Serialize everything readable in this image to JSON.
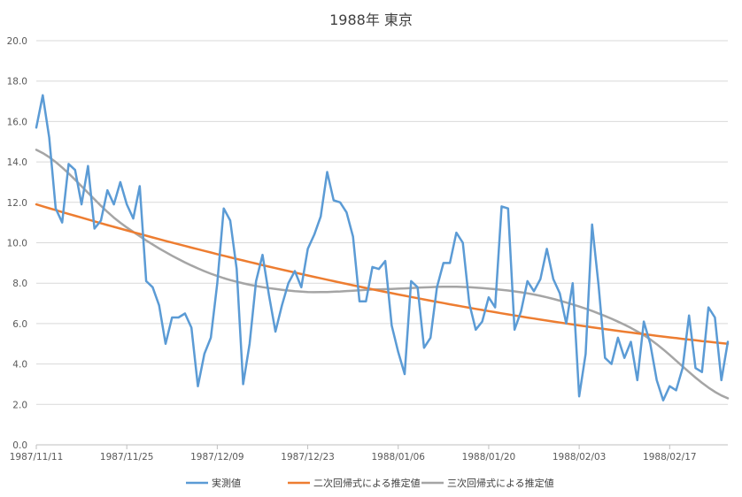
{
  "chart_data": {
    "type": "line",
    "title": "1988年 東京",
    "xlabel": "",
    "ylabel": "",
    "ylim": [
      0,
      20
    ],
    "y_ticks": [
      "0.0",
      "2.0",
      "4.0",
      "6.0",
      "8.0",
      "10.0",
      "12.0",
      "14.0",
      "16.0",
      "18.0",
      "20.0"
    ],
    "x_tick_labels": [
      "1987/11/11",
      "1987/11/25",
      "1987/12/09",
      "1987/12/23",
      "1988/01/06",
      "1988/01/20",
      "1988/02/03",
      "1988/02/17"
    ],
    "x_start": "1987/11/11",
    "x_end": "1988/02/29",
    "grid": true,
    "legend_position": "bottom",
    "series": [
      {
        "name": "実測値",
        "color": "#5B9BD5",
        "values": [
          15.7,
          17.3,
          15.2,
          11.7,
          11.0,
          13.9,
          13.6,
          11.9,
          13.8,
          10.7,
          11.1,
          12.6,
          11.9,
          13.0,
          11.9,
          11.2,
          12.8,
          8.1,
          7.8,
          6.9,
          5.0,
          6.3,
          6.3,
          6.5,
          5.8,
          2.9,
          4.5,
          5.3,
          8.0,
          11.7,
          11.1,
          8.7,
          3.0,
          5.0,
          8.1,
          9.4,
          7.4,
          5.6,
          6.9,
          8.0,
          8.6,
          7.8,
          9.7,
          10.4,
          11.3,
          13.5,
          12.1,
          12.0,
          11.5,
          10.3,
          7.1,
          7.1,
          8.8,
          8.7,
          9.1,
          5.9,
          4.6,
          3.5,
          8.1,
          7.8,
          4.8,
          5.3,
          7.8,
          9.0,
          9.0,
          10.5,
          10.0,
          7.0,
          5.7,
          6.1,
          7.3,
          6.8,
          11.8,
          11.7,
          5.7,
          6.6,
          8.1,
          7.6,
          8.2,
          9.7,
          8.2,
          7.5,
          6.0,
          8.0,
          2.4,
          4.5,
          10.9,
          7.9,
          4.3,
          4.0,
          5.3,
          4.3,
          5.1,
          3.2,
          6.1,
          5.0,
          3.2,
          2.2,
          2.9,
          2.7,
          3.8,
          6.4,
          3.8,
          3.6,
          6.8,
          6.3,
          3.2,
          5.1
        ]
      },
      {
        "name": "二次回帰式による推定値",
        "color": "#ED7D31",
        "formula": "quadratic",
        "start": 11.9,
        "mid": 7.6,
        "end": 5.0
      },
      {
        "name": "三次回帰式による推定値",
        "color": "#A5A5A5",
        "formula": "cubic",
        "anchor_values": [
          14.6,
          10.9,
          8.5,
          7.6,
          7.7,
          7.8,
          7.2,
          5.5,
          2.3
        ]
      }
    ]
  }
}
